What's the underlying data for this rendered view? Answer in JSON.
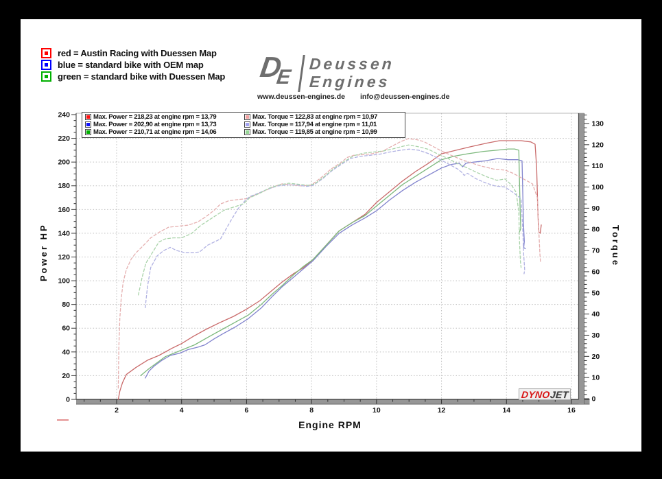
{
  "bike_legend": {
    "items": [
      {
        "color": "#ff0000",
        "label": "red = Austin Racing with Duessen Map"
      },
      {
        "color": "#0000ff",
        "label": "blue = standard bike with OEM map"
      },
      {
        "color": "#00b000",
        "label": "green = standard bike with Duessen Map"
      }
    ]
  },
  "logo": {
    "monogram_d": "D",
    "monogram_e": "E",
    "name_line1": "Deussen",
    "name_line2": "Engines",
    "website": "www.deussen-engines.de",
    "email": "info@deussen-engines.de"
  },
  "dynojet": {
    "part1": "DYNO",
    "part2": "JET"
  },
  "stray_mark": {
    "color": "#e49090"
  },
  "chart_data": {
    "type": "line",
    "xlabel": "Engine RPM",
    "ylabel_left": "Power HP",
    "ylabel_right": "Torque",
    "grid": true,
    "x_range": [
      0.75,
      16.4
    ],
    "x_ticks": [
      2,
      4,
      6,
      8,
      10,
      12,
      14,
      16
    ],
    "x_minor_step": 0.5,
    "y_left_range": [
      0,
      240
    ],
    "y_left_ticks": [
      0,
      20,
      40,
      60,
      80,
      100,
      120,
      140,
      160,
      180,
      200,
      220,
      240
    ],
    "y_left_minor_step": 5,
    "y_right_range": [
      0,
      134
    ],
    "y_right_ticks": [
      0,
      10,
      20,
      30,
      40,
      50,
      60,
      70,
      80,
      90,
      100,
      110,
      120,
      130
    ],
    "y_right_minor_step": 2,
    "stats_legend": {
      "rows": [
        {
          "power_label": "Max. Power = 218,23 at engine rpm = 13,79",
          "torque_label": "Max. Torque = 122,83 at engine rpm = 10,97",
          "power_color": "#ff1010",
          "torque_color": "#f2a2a2"
        },
        {
          "power_label": "Max. Power = 202,90 at engine rpm = 13,73",
          "torque_label": "Max. Torque = 117,94 at engine rpm = 11,01",
          "power_color": "#1010ff",
          "torque_color": "#a2a2f2"
        },
        {
          "power_label": "Max. Power = 210,71 at engine rpm = 14,06",
          "torque_label": "Max. Torque = 119,85 at engine rpm = 10,99",
          "power_color": "#00b000",
          "torque_color": "#96d696"
        }
      ]
    },
    "series": [
      {
        "name": "power-red-austin-racing-duessen-map",
        "axis": "left",
        "style": "solid",
        "color": "#c96a6a",
        "points": [
          [
            2.05,
            0
          ],
          [
            2.1,
            7
          ],
          [
            2.18,
            14
          ],
          [
            2.3,
            21
          ],
          [
            2.6,
            27
          ],
          [
            2.95,
            33
          ],
          [
            3.3,
            37
          ],
          [
            3.7,
            43
          ],
          [
            4.0,
            47
          ],
          [
            4.35,
            53
          ],
          [
            4.75,
            59
          ],
          [
            5.2,
            65
          ],
          [
            5.6,
            70
          ],
          [
            6.0,
            76
          ],
          [
            6.4,
            83
          ],
          [
            6.75,
            91
          ],
          [
            7.1,
            99
          ],
          [
            7.45,
            106
          ],
          [
            7.75,
            111
          ],
          [
            8.05,
            118
          ],
          [
            8.45,
            130
          ],
          [
            8.85,
            142
          ],
          [
            9.25,
            149
          ],
          [
            9.65,
            156
          ],
          [
            10.0,
            166
          ],
          [
            10.4,
            175
          ],
          [
            10.8,
            184
          ],
          [
            11.2,
            192
          ],
          [
            11.6,
            199
          ],
          [
            12.0,
            207
          ],
          [
            12.45,
            210
          ],
          [
            12.9,
            213
          ],
          [
            13.4,
            216
          ],
          [
            13.79,
            218
          ],
          [
            14.1,
            218
          ],
          [
            14.45,
            218
          ],
          [
            14.75,
            217
          ],
          [
            14.88,
            215
          ],
          [
            14.93,
            195
          ],
          [
            14.96,
            165
          ],
          [
            14.98,
            148
          ],
          [
            15.0,
            141
          ],
          [
            15.04,
            140
          ],
          [
            15.07,
            147
          ]
        ]
      },
      {
        "name": "power-blue-standard-oem-map",
        "axis": "left",
        "style": "solid",
        "color": "#8183cd",
        "points": [
          [
            2.88,
            18
          ],
          [
            3.0,
            24
          ],
          [
            3.15,
            28
          ],
          [
            3.4,
            33
          ],
          [
            3.65,
            37
          ],
          [
            3.95,
            39
          ],
          [
            4.2,
            42
          ],
          [
            4.5,
            44
          ],
          [
            4.72,
            46
          ],
          [
            5.0,
            51
          ],
          [
            5.25,
            55
          ],
          [
            5.65,
            61
          ],
          [
            6.05,
            68
          ],
          [
            6.45,
            77
          ],
          [
            6.8,
            87
          ],
          [
            7.1,
            95
          ],
          [
            7.45,
            103
          ],
          [
            7.75,
            110
          ],
          [
            8.05,
            117
          ],
          [
            8.45,
            129
          ],
          [
            8.85,
            140
          ],
          [
            9.25,
            147
          ],
          [
            9.65,
            153
          ],
          [
            10.0,
            159
          ],
          [
            10.4,
            168
          ],
          [
            10.8,
            176
          ],
          [
            11.2,
            183
          ],
          [
            11.6,
            189
          ],
          [
            12.0,
            195
          ],
          [
            12.3,
            198
          ],
          [
            12.55,
            199
          ],
          [
            12.65,
            196
          ],
          [
            12.75,
            199
          ],
          [
            13.0,
            200
          ],
          [
            13.35,
            201
          ],
          [
            13.73,
            203
          ],
          [
            14.05,
            202
          ],
          [
            14.35,
            202
          ],
          [
            14.48,
            201
          ],
          [
            14.5,
            175
          ],
          [
            14.52,
            150
          ],
          [
            14.55,
            133
          ],
          [
            14.53,
            128
          ],
          [
            14.58,
            127
          ]
        ]
      },
      {
        "name": "power-green-standard-duessen-map",
        "axis": "left",
        "style": "solid",
        "color": "#7cb87c",
        "points": [
          [
            2.74,
            20
          ],
          [
            3.0,
            26
          ],
          [
            3.25,
            31
          ],
          [
            3.5,
            36
          ],
          [
            3.95,
            41
          ],
          [
            4.4,
            46
          ],
          [
            4.85,
            53
          ],
          [
            5.25,
            59
          ],
          [
            5.65,
            65
          ],
          [
            6.05,
            71
          ],
          [
            6.45,
            80
          ],
          [
            6.8,
            89
          ],
          [
            7.1,
            96
          ],
          [
            7.45,
            105
          ],
          [
            7.75,
            112
          ],
          [
            8.05,
            118
          ],
          [
            8.45,
            130
          ],
          [
            8.85,
            142
          ],
          [
            9.25,
            149
          ],
          [
            9.65,
            155
          ],
          [
            10.0,
            163
          ],
          [
            10.4,
            172
          ],
          [
            10.8,
            181
          ],
          [
            11.2,
            188
          ],
          [
            11.6,
            195
          ],
          [
            12.0,
            202
          ],
          [
            12.4,
            205
          ],
          [
            12.8,
            207
          ],
          [
            13.3,
            209
          ],
          [
            13.7,
            210
          ],
          [
            14.06,
            211
          ],
          [
            14.25,
            211
          ],
          [
            14.38,
            210
          ],
          [
            14.4,
            185
          ],
          [
            14.42,
            160
          ],
          [
            14.44,
            144
          ],
          [
            14.4,
            141
          ]
        ]
      },
      {
        "name": "torque-red-austin-racing-duessen-map",
        "axis": "right",
        "style": "dashed",
        "color": "#e5afaf",
        "points": [
          [
            2.05,
            5
          ],
          [
            2.07,
            25
          ],
          [
            2.1,
            38
          ],
          [
            2.14,
            47
          ],
          [
            2.2,
            55
          ],
          [
            2.3,
            61
          ],
          [
            2.45,
            66
          ],
          [
            2.6,
            69
          ],
          [
            2.8,
            72
          ],
          [
            3.05,
            76
          ],
          [
            3.35,
            79
          ],
          [
            3.6,
            81
          ],
          [
            3.9,
            81.5
          ],
          [
            4.2,
            82
          ],
          [
            4.5,
            83.5
          ],
          [
            4.75,
            86
          ],
          [
            5.0,
            89
          ],
          [
            5.2,
            92
          ],
          [
            5.45,
            93.5
          ],
          [
            5.7,
            94
          ],
          [
            6.0,
            94.5
          ],
          [
            6.3,
            96.5
          ],
          [
            6.6,
            98.5
          ],
          [
            6.9,
            100.5
          ],
          [
            7.1,
            101.5
          ],
          [
            7.4,
            101
          ],
          [
            7.7,
            100.5
          ],
          [
            8.0,
            101
          ],
          [
            8.3,
            104.5
          ],
          [
            8.6,
            108.5
          ],
          [
            8.9,
            111.5
          ],
          [
            9.1,
            114
          ],
          [
            9.3,
            115
          ],
          [
            9.6,
            115.3
          ],
          [
            9.9,
            115.8
          ],
          [
            10.2,
            117
          ],
          [
            10.5,
            119.5
          ],
          [
            10.75,
            121.5
          ],
          [
            10.97,
            122.8
          ],
          [
            11.2,
            122.5
          ],
          [
            11.45,
            121.5
          ],
          [
            11.7,
            119.5
          ],
          [
            12.0,
            117
          ],
          [
            12.3,
            115
          ],
          [
            12.6,
            113
          ],
          [
            12.9,
            111.5
          ],
          [
            13.2,
            110
          ],
          [
            13.6,
            108.5
          ],
          [
            13.96,
            108
          ],
          [
            14.2,
            106.5
          ],
          [
            14.5,
            104
          ],
          [
            14.8,
            101.5
          ],
          [
            14.95,
            95
          ],
          [
            15.0,
            78
          ],
          [
            15.03,
            68
          ],
          [
            15.05,
            64
          ]
        ]
      },
      {
        "name": "torque-blue-standard-oem-map",
        "axis": "right",
        "style": "dashed",
        "color": "#b0b1e2",
        "points": [
          [
            2.88,
            43
          ],
          [
            2.95,
            53
          ],
          [
            3.05,
            62
          ],
          [
            3.25,
            67.5
          ],
          [
            3.45,
            70
          ],
          [
            3.65,
            71.5
          ],
          [
            3.85,
            70
          ],
          [
            4.1,
            69
          ],
          [
            4.35,
            69
          ],
          [
            4.55,
            69.3
          ],
          [
            4.8,
            72.5
          ],
          [
            5.0,
            74
          ],
          [
            5.2,
            75.5
          ],
          [
            5.4,
            81
          ],
          [
            5.55,
            85
          ],
          [
            5.75,
            90
          ],
          [
            5.95,
            93.5
          ],
          [
            6.1,
            95.5
          ],
          [
            6.35,
            97
          ],
          [
            6.65,
            99
          ],
          [
            6.95,
            100.5
          ],
          [
            7.25,
            101
          ],
          [
            7.55,
            101
          ],
          [
            7.85,
            100.3
          ],
          [
            8.05,
            100.8
          ],
          [
            8.35,
            104
          ],
          [
            8.65,
            108
          ],
          [
            8.95,
            111
          ],
          [
            9.2,
            113.5
          ],
          [
            9.5,
            114.5
          ],
          [
            9.8,
            115
          ],
          [
            10.1,
            115.5
          ],
          [
            10.4,
            116.5
          ],
          [
            10.7,
            117.3
          ],
          [
            11.01,
            117.9
          ],
          [
            11.3,
            117.4
          ],
          [
            11.6,
            115.8
          ],
          [
            11.9,
            113.5
          ],
          [
            12.2,
            111
          ],
          [
            12.5,
            108.5
          ],
          [
            12.62,
            107
          ],
          [
            12.7,
            105.5
          ],
          [
            12.8,
            106.5
          ],
          [
            13.05,
            104
          ],
          [
            13.35,
            102
          ],
          [
            13.65,
            100.5
          ],
          [
            13.95,
            100
          ],
          [
            14.2,
            97.5
          ],
          [
            14.45,
            94.5
          ],
          [
            14.5,
            80
          ],
          [
            14.53,
            68
          ],
          [
            14.56,
            61
          ],
          [
            14.54,
            59
          ]
        ]
      },
      {
        "name": "torque-green-standard-duessen-map",
        "axis": "right",
        "style": "dashed",
        "color": "#a9d3a9",
        "points": [
          [
            2.67,
            49
          ],
          [
            2.78,
            57
          ],
          [
            2.9,
            64
          ],
          [
            3.1,
            69
          ],
          [
            3.3,
            74
          ],
          [
            3.5,
            75.5
          ],
          [
            3.75,
            76
          ],
          [
            4.0,
            76
          ],
          [
            4.3,
            78
          ],
          [
            4.6,
            82
          ],
          [
            4.95,
            85.5
          ],
          [
            5.3,
            89
          ],
          [
            5.6,
            90.5
          ],
          [
            5.9,
            92
          ],
          [
            6.1,
            95
          ],
          [
            6.4,
            97
          ],
          [
            6.7,
            99.5
          ],
          [
            7.0,
            101
          ],
          [
            7.3,
            101.8
          ],
          [
            7.6,
            101.3
          ],
          [
            7.9,
            100.8
          ],
          [
            8.1,
            101.5
          ],
          [
            8.4,
            105
          ],
          [
            8.7,
            109
          ],
          [
            9.0,
            112
          ],
          [
            9.3,
            114.8
          ],
          [
            9.6,
            116
          ],
          [
            9.9,
            116.5
          ],
          [
            10.2,
            117
          ],
          [
            10.5,
            118
          ],
          [
            10.8,
            119.2
          ],
          [
            10.99,
            119.85
          ],
          [
            11.3,
            119
          ],
          [
            11.6,
            117.8
          ],
          [
            11.9,
            115.5
          ],
          [
            12.2,
            113.5
          ],
          [
            12.5,
            111
          ],
          [
            12.8,
            109
          ],
          [
            13.1,
            106.8
          ],
          [
            13.4,
            104.8
          ],
          [
            13.7,
            103.2
          ],
          [
            13.96,
            103.8
          ],
          [
            14.15,
            101
          ],
          [
            14.3,
            97.5
          ],
          [
            14.38,
            88
          ],
          [
            14.4,
            75
          ],
          [
            14.43,
            65
          ],
          [
            14.45,
            62
          ]
        ]
      }
    ]
  }
}
